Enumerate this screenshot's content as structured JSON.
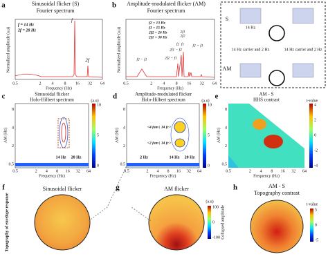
{
  "panel_a": {
    "label": "a",
    "title": "Sinusoidal flicker (S)",
    "subtitle": "Fourier spectrum",
    "legend": [
      "f = 14 Hz",
      "2f = 28 Hz"
    ],
    "peaks": [
      "f",
      "2f"
    ],
    "y_label": "Normalized amplitude (a.u)",
    "x_label": "Frequency (Hz)",
    "x_ticks": [
      "0.5",
      "2",
      "4",
      "8",
      "16",
      "32",
      "64"
    ]
  },
  "panel_b": {
    "label": "b",
    "title": "Amplitude-modulated flicker (AM)",
    "subtitle": "Fourier spectrum",
    "legend": [
      "f2 = 13 Hz",
      "f1 = 15 Hz",
      "2f2 = 26 Hz",
      "2f1 = 30 Hz"
    ],
    "peaks": [
      "f2 − f1",
      "2f2 − f1",
      "2f1 − f2",
      "f2",
      "f1",
      "2f2",
      "2f1",
      "f2 + f1"
    ],
    "y_label": "Normalized amplitude (a.u)",
    "x_label": "Frequency (Hz)",
    "x_ticks": [
      "0.5",
      "2",
      "4",
      "8",
      "16",
      "32",
      "64"
    ]
  },
  "diagram": {
    "row_labels": [
      "S",
      "AM"
    ],
    "s_label": "14 Hz",
    "am_labels": [
      "14 Hz carrier and 2 Hz",
      "14 Hz carrier and 2 Hz"
    ]
  },
  "panel_c": {
    "label": "c",
    "title": "Sinusoidal flicker",
    "subtitle": "Holo-Hilbert spectrum",
    "y_label": "AM (Hz)",
    "x_label": "Frequency (Hz)",
    "y_ticks": [
      "0.5",
      "2",
      "4",
      "8"
    ],
    "x_ticks": [
      "0.5",
      "2",
      "4",
      "8",
      "16",
      "32",
      "64"
    ],
    "annotations": [
      "14 Hz",
      "28 Hz"
    ],
    "colorbar_title": "(a.u)",
    "colorbar_ticks": [
      "10",
      "5",
      "0"
    ]
  },
  "panel_d": {
    "label": "d",
    "title": "Amplitude-modulated flicker",
    "subtitle": "Holo-Hilbert spectrum",
    "y_label": "AM (Hz)",
    "x_label": "Frequency (Hz)",
    "y_ticks": [
      "0.5",
      "2",
      "4",
      "8"
    ],
    "x_ticks": [
      "0.5",
      "2",
      "4",
      "8",
      "16",
      "32",
      "64"
    ],
    "annotations": [
      "<4 fam | 14 fc>",
      "<2 fam | 14 fc>",
      "2 Hz",
      "14 Hz",
      "28 Hz"
    ],
    "colorbar_title": "(a.u)",
    "colorbar_ticks": [
      "10",
      "5",
      "0"
    ]
  },
  "panel_e": {
    "label": "e",
    "title": "AM - S",
    "subtitle": "HHS contrast",
    "y_label": "AM (Hz)",
    "x_label": "Frequency (Hz)",
    "y_ticks": [
      "0.5",
      "2",
      "4",
      "8"
    ],
    "x_ticks": [
      "0.5",
      "2",
      "4",
      "8",
      "16",
      "32",
      "64"
    ],
    "colorbar_title": "t-value",
    "colorbar_ticks": [
      "4",
      "2",
      "0",
      "-2",
      "-4"
    ]
  },
  "panel_f": {
    "label": "f",
    "title": "Sinusoidal flicker",
    "side_label": "Topography of envelope response"
  },
  "panel_g": {
    "label": "g",
    "title": "AM flicker",
    "colorbar_title": "(a.u)",
    "colorbar_ticks": [
      "100",
      "0",
      "-100"
    ],
    "colorbar_label": "Collapsed amplitude"
  },
  "panel_h": {
    "label": "h",
    "title": "AM - S",
    "subtitle": "Topography contrast",
    "colorbar_title": "t-value",
    "colorbar_ticks": [
      "5",
      "0",
      "-5"
    ]
  }
}
